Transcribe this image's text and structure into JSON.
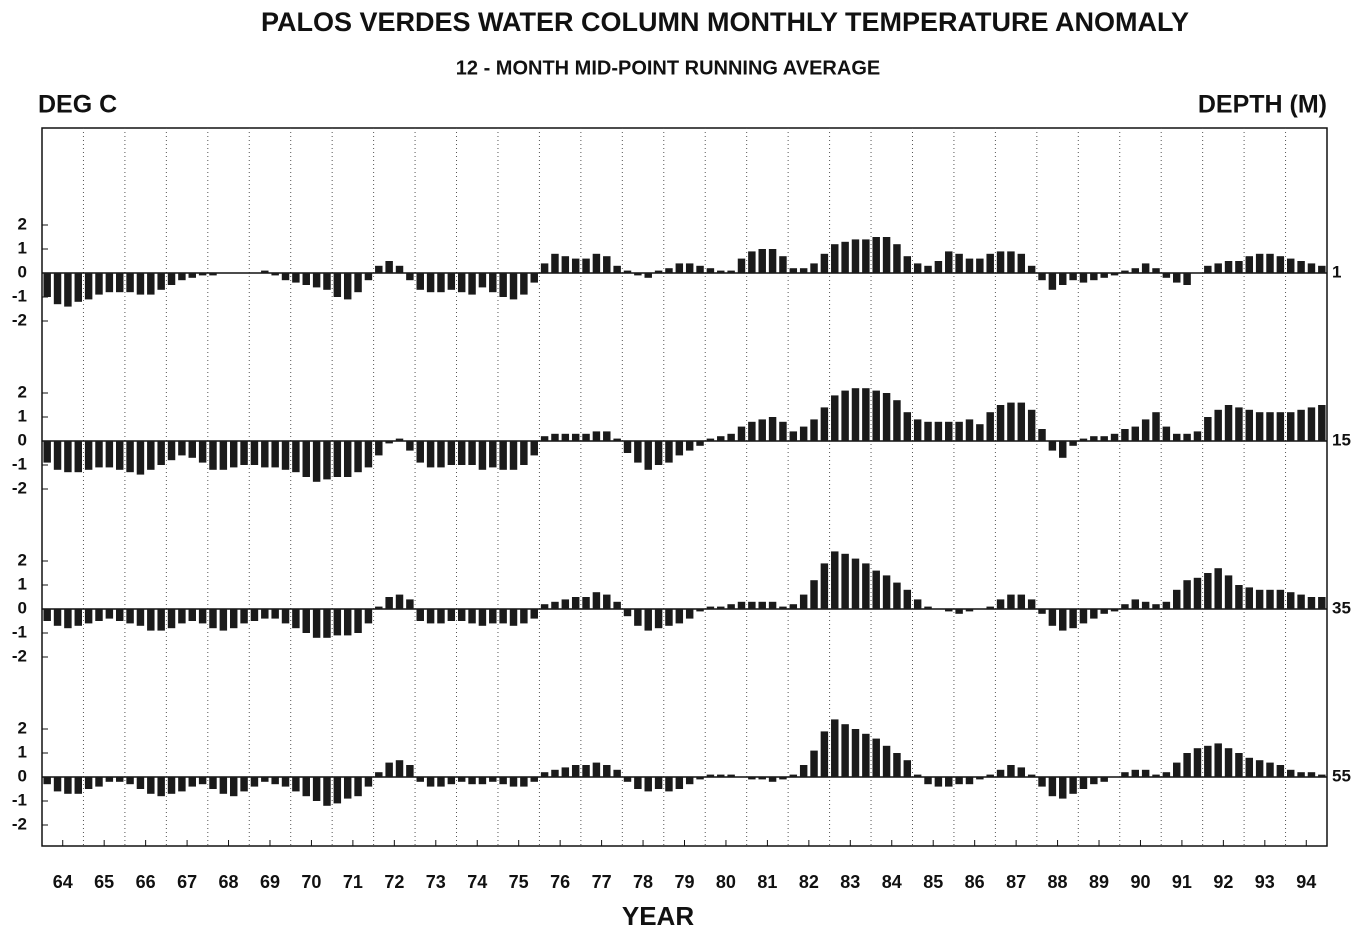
{
  "chart_data": {
    "type": "bar",
    "title": "PALOS VERDES WATER COLUMN MONTHLY TEMPERATURE ANOMALY",
    "subtitle": "12 - MONTH MID-POINT RUNNING AVERAGE",
    "y_label": "DEG C",
    "series_label": "DEPTH (M)",
    "x_label": "YEAR",
    "xlim": [
      1964,
      1995
    ],
    "xticks": [
      {
        "value": 1964.5,
        "label": "64"
      },
      {
        "value": 1965.5,
        "label": "65"
      },
      {
        "value": 1966.5,
        "label": "66"
      },
      {
        "value": 1967.5,
        "label": "67"
      },
      {
        "value": 1968.5,
        "label": "68"
      },
      {
        "value": 1969.5,
        "label": "69"
      },
      {
        "value": 1970.5,
        "label": "70"
      },
      {
        "value": 1971.5,
        "label": "71"
      },
      {
        "value": 1972.5,
        "label": "72"
      },
      {
        "value": 1973.5,
        "label": "73"
      },
      {
        "value": 1974.5,
        "label": "74"
      },
      {
        "value": 1975.5,
        "label": "75"
      },
      {
        "value": 1976.5,
        "label": "76"
      },
      {
        "value": 1977.5,
        "label": "77"
      },
      {
        "value": 1978.5,
        "label": "78"
      },
      {
        "value": 1979.5,
        "label": "79"
      },
      {
        "value": 1980.5,
        "label": "80"
      },
      {
        "value": 1981.5,
        "label": "81"
      },
      {
        "value": 1982.5,
        "label": "82"
      },
      {
        "value": 1983.5,
        "label": "83"
      },
      {
        "value": 1984.5,
        "label": "84"
      },
      {
        "value": 1985.5,
        "label": "85"
      },
      {
        "value": 1986.5,
        "label": "86"
      },
      {
        "value": 1987.5,
        "label": "87"
      },
      {
        "value": 1988.5,
        "label": "88"
      },
      {
        "value": 1989.5,
        "label": "89"
      },
      {
        "value": 1990.5,
        "label": "90"
      },
      {
        "value": 1991.5,
        "label": "91"
      },
      {
        "value": 1992.5,
        "label": "92"
      },
      {
        "value": 1993.5,
        "label": "93"
      },
      {
        "value": 1994.5,
        "label": "94"
      }
    ],
    "xgrid": [
      1965,
      1966,
      1967,
      1968,
      1969,
      1970,
      1971,
      1972,
      1973,
      1974,
      1975,
      1976,
      1977,
      1978,
      1979,
      1980,
      1981,
      1982,
      1983,
      1984,
      1985,
      1986,
      1987,
      1988,
      1989,
      1990,
      1991,
      1992,
      1993,
      1994
    ],
    "ylim": [
      -3.5,
      3.5
    ],
    "yticks": [
      -2,
      -1,
      0,
      1,
      2
    ],
    "color": "#1a1a1a",
    "x": [
      1964.125,
      1964.375,
      1964.625,
      1964.875,
      1965.125,
      1965.375,
      1965.625,
      1965.875,
      1966.125,
      1966.375,
      1966.625,
      1966.875,
      1967.125,
      1967.375,
      1967.625,
      1967.875,
      1968.125,
      1968.375,
      1968.625,
      1968.875,
      1969.125,
      1969.375,
      1969.625,
      1969.875,
      1970.125,
      1970.375,
      1970.625,
      1970.875,
      1971.125,
      1971.375,
      1971.625,
      1971.875,
      1972.125,
      1972.375,
      1972.625,
      1972.875,
      1973.125,
      1973.375,
      1973.625,
      1973.875,
      1974.125,
      1974.375,
      1974.625,
      1974.875,
      1975.125,
      1975.375,
      1975.625,
      1975.875,
      1976.125,
      1976.375,
      1976.625,
      1976.875,
      1977.125,
      1977.375,
      1977.625,
      1977.875,
      1978.125,
      1978.375,
      1978.625,
      1978.875,
      1979.125,
      1979.375,
      1979.625,
      1979.875,
      1980.125,
      1980.375,
      1980.625,
      1980.875,
      1981.125,
      1981.375,
      1981.625,
      1981.875,
      1982.125,
      1982.375,
      1982.625,
      1982.875,
      1983.125,
      1983.375,
      1983.625,
      1983.875,
      1984.125,
      1984.375,
      1984.625,
      1984.875,
      1985.125,
      1985.375,
      1985.625,
      1985.875,
      1986.125,
      1986.375,
      1986.625,
      1986.875,
      1987.125,
      1987.375,
      1987.625,
      1987.875,
      1988.125,
      1988.375,
      1988.625,
      1988.875,
      1989.125,
      1989.375,
      1989.625,
      1989.875,
      1990.125,
      1990.375,
      1990.625,
      1990.875,
      1991.125,
      1991.375,
      1991.625,
      1991.875,
      1992.125,
      1992.375,
      1992.625,
      1992.875,
      1993.125,
      1993.375,
      1993.625,
      1993.875,
      1994.125,
      1994.375,
      1994.625,
      1994.875
    ],
    "series": [
      {
        "name": "1",
        "values": [
          -1.0,
          -1.3,
          -1.4,
          -1.2,
          -1.1,
          -0.9,
          -0.8,
          -0.8,
          -0.8,
          -0.9,
          -0.9,
          -0.7,
          -0.5,
          -0.3,
          -0.2,
          -0.1,
          -0.1,
          0,
          0,
          0,
          0,
          0.1,
          -0.1,
          -0.3,
          -0.4,
          -0.5,
          -0.6,
          -0.7,
          -1.0,
          -1.1,
          -0.8,
          -0.3,
          0.3,
          0.5,
          0.3,
          -0.3,
          -0.7,
          -0.8,
          -0.8,
          -0.7,
          -0.8,
          -0.9,
          -0.6,
          -0.8,
          -1.0,
          -1.1,
          -0.9,
          -0.4,
          0.4,
          0.8,
          0.7,
          0.6,
          0.6,
          0.8,
          0.7,
          0.3,
          0.1,
          -0.1,
          -0.2,
          0.1,
          0.2,
          0.4,
          0.4,
          0.3,
          0.2,
          0.1,
          0.1,
          0.6,
          0.9,
          1.0,
          1.0,
          0.7,
          0.2,
          0.2,
          0.4,
          0.8,
          1.2,
          1.3,
          1.4,
          1.4,
          1.5,
          1.5,
          1.2,
          0.7,
          0.4,
          0.3,
          0.5,
          0.9,
          0.8,
          0.6,
          0.6,
          0.8,
          0.9,
          0.9,
          0.8,
          0.3,
          -0.3,
          -0.7,
          -0.5,
          -0.3,
          -0.4,
          -0.3,
          -0.2,
          -0.1,
          0.1,
          0.2,
          0.4,
          0.2,
          -0.2,
          -0.4,
          -0.5,
          0,
          0.3,
          0.4,
          0.5,
          0.5,
          0.7,
          0.8,
          0.8,
          0.7,
          0.6,
          0.5,
          0.4,
          0.3
        ]
      },
      {
        "name": "15",
        "values": [
          -0.9,
          -1.2,
          -1.3,
          -1.3,
          -1.2,
          -1.1,
          -1.1,
          -1.2,
          -1.3,
          -1.4,
          -1.2,
          -1.0,
          -0.8,
          -0.6,
          -0.7,
          -0.9,
          -1.2,
          -1.2,
          -1.1,
          -1.0,
          -1.0,
          -1.1,
          -1.1,
          -1.2,
          -1.3,
          -1.5,
          -1.7,
          -1.6,
          -1.5,
          -1.5,
          -1.3,
          -1.1,
          -0.6,
          -0.1,
          0.1,
          -0.4,
          -0.9,
          -1.1,
          -1.1,
          -1.0,
          -1.0,
          -1.0,
          -1.2,
          -1.1,
          -1.2,
          -1.2,
          -1.0,
          -0.6,
          0.2,
          0.3,
          0.3,
          0.3,
          0.3,
          0.4,
          0.4,
          0.1,
          -0.5,
          -0.9,
          -1.2,
          -1.0,
          -0.9,
          -0.6,
          -0.4,
          -0.2,
          0.1,
          0.2,
          0.3,
          0.6,
          0.8,
          0.9,
          1.0,
          0.8,
          0.4,
          0.6,
          0.9,
          1.4,
          1.9,
          2.1,
          2.2,
          2.2,
          2.1,
          2.0,
          1.7,
          1.2,
          0.9,
          0.8,
          0.8,
          0.8,
          0.8,
          0.9,
          0.7,
          1.2,
          1.5,
          1.6,
          1.6,
          1.3,
          0.5,
          -0.4,
          -0.7,
          -0.2,
          0.1,
          0.2,
          0.2,
          0.3,
          0.5,
          0.6,
          0.9,
          1.2,
          0.6,
          0.3,
          0.3,
          0.4,
          1.0,
          1.3,
          1.5,
          1.4,
          1.3,
          1.2,
          1.2,
          1.2,
          1.2,
          1.3,
          1.4,
          1.5
        ]
      },
      {
        "name": "35",
        "values": [
          -0.5,
          -0.7,
          -0.8,
          -0.7,
          -0.6,
          -0.5,
          -0.4,
          -0.5,
          -0.6,
          -0.7,
          -0.9,
          -0.9,
          -0.8,
          -0.6,
          -0.5,
          -0.6,
          -0.8,
          -0.9,
          -0.8,
          -0.6,
          -0.5,
          -0.4,
          -0.4,
          -0.6,
          -0.8,
          -1.0,
          -1.2,
          -1.2,
          -1.1,
          -1.1,
          -1.0,
          -0.6,
          0.1,
          0.5,
          0.6,
          0.4,
          -0.5,
          -0.6,
          -0.6,
          -0.5,
          -0.5,
          -0.6,
          -0.7,
          -0.6,
          -0.6,
          -0.7,
          -0.6,
          -0.4,
          0.2,
          0.3,
          0.4,
          0.5,
          0.5,
          0.7,
          0.6,
          0.3,
          -0.3,
          -0.7,
          -0.9,
          -0.8,
          -0.7,
          -0.6,
          -0.4,
          -0.1,
          0.1,
          0.1,
          0.2,
          0.3,
          0.3,
          0.3,
          0.3,
          0.1,
          0.2,
          0.6,
          1.2,
          1.9,
          2.4,
          2.3,
          2.1,
          1.9,
          1.6,
          1.4,
          1.1,
          0.8,
          0.4,
          0.1,
          0,
          -0.1,
          -0.2,
          -0.1,
          0,
          0.1,
          0.4,
          0.6,
          0.6,
          0.4,
          -0.2,
          -0.7,
          -0.9,
          -0.8,
          -0.6,
          -0.4,
          -0.2,
          -0.1,
          0.2,
          0.4,
          0.3,
          0.2,
          0.3,
          0.8,
          1.2,
          1.3,
          1.5,
          1.7,
          1.4,
          1.0,
          0.9,
          0.8,
          0.8,
          0.8,
          0.7,
          0.6,
          0.5,
          0.5
        ]
      },
      {
        "name": "55",
        "values": [
          -0.3,
          -0.6,
          -0.7,
          -0.7,
          -0.5,
          -0.4,
          -0.2,
          -0.2,
          -0.3,
          -0.5,
          -0.7,
          -0.8,
          -0.7,
          -0.6,
          -0.4,
          -0.3,
          -0.5,
          -0.7,
          -0.8,
          -0.6,
          -0.4,
          -0.2,
          -0.3,
          -0.4,
          -0.6,
          -0.8,
          -1.0,
          -1.2,
          -1.1,
          -0.9,
          -0.8,
          -0.4,
          0.2,
          0.6,
          0.7,
          0.5,
          -0.2,
          -0.4,
          -0.4,
          -0.3,
          -0.2,
          -0.3,
          -0.3,
          -0.2,
          -0.3,
          -0.4,
          -0.4,
          -0.2,
          0.2,
          0.3,
          0.4,
          0.5,
          0.5,
          0.6,
          0.5,
          0.3,
          -0.2,
          -0.5,
          -0.6,
          -0.5,
          -0.6,
          -0.5,
          -0.3,
          -0.1,
          0.1,
          0.1,
          0.1,
          0,
          -0.1,
          -0.1,
          -0.2,
          -0.1,
          0.1,
          0.5,
          1.1,
          1.9,
          2.4,
          2.2,
          2.0,
          1.8,
          1.6,
          1.3,
          1.0,
          0.7,
          0.1,
          -0.3,
          -0.4,
          -0.4,
          -0.3,
          -0.3,
          -0.1,
          0.1,
          0.3,
          0.5,
          0.4,
          0.1,
          -0.4,
          -0.8,
          -0.9,
          -0.7,
          -0.5,
          -0.3,
          -0.2,
          0,
          0.2,
          0.3,
          0.3,
          0.1,
          0.2,
          0.6,
          1.0,
          1.2,
          1.3,
          1.4,
          1.2,
          1.0,
          0.8,
          0.7,
          0.6,
          0.5,
          0.3,
          0.2,
          0.2,
          0.1
        ]
      }
    ]
  }
}
